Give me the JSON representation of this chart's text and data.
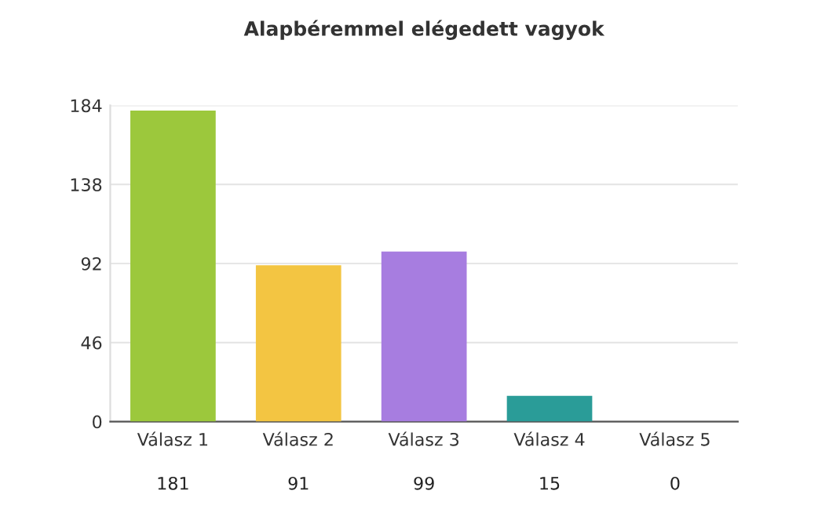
{
  "chart_data": {
    "type": "bar",
    "title": "Alapbéremmel elégedett vagyok",
    "categories": [
      "Válasz 1",
      "Válasz 2",
      "Válasz 3",
      "Válasz 4",
      "Válasz 5"
    ],
    "values": [
      181,
      91,
      99,
      15,
      0
    ],
    "colors": [
      "#9cc83c",
      "#f3c542",
      "#a77de0",
      "#2a9c98",
      "#cccccc"
    ],
    "ylim": [
      0,
      184
    ],
    "yticks": [
      0,
      46,
      92,
      138,
      184
    ],
    "grid": "y",
    "data_labels": true
  }
}
